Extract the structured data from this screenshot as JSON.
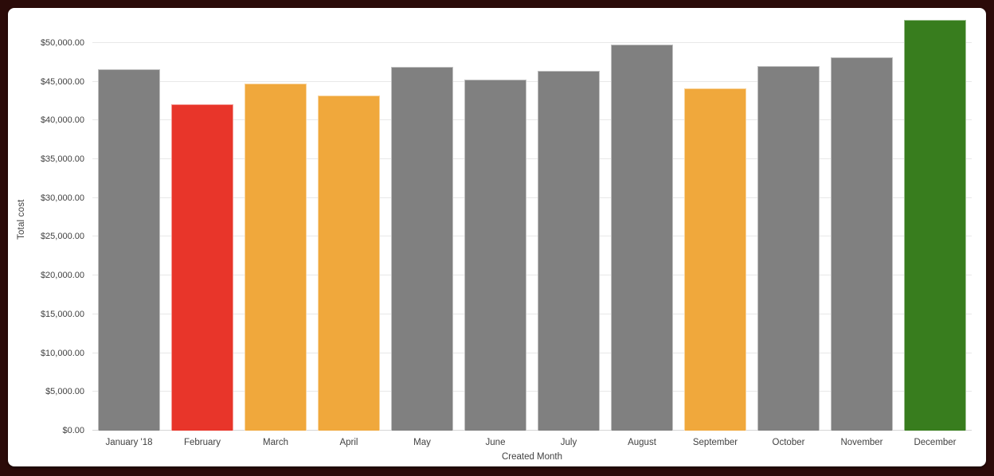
{
  "chart_data": {
    "type": "bar",
    "title": "",
    "xlabel": "Created Month",
    "ylabel": "Total cost",
    "categories": [
      "January '18",
      "February",
      "March",
      "April",
      "May",
      "June",
      "July",
      "August",
      "September",
      "October",
      "November",
      "December"
    ],
    "values": [
      46550,
      42100,
      44750,
      43200,
      46870,
      45300,
      46430,
      49800,
      44100,
      47050,
      48130,
      53000
    ],
    "bar_colors": [
      "#808080",
      "#E8352A",
      "#F0A83C",
      "#F0A83C",
      "#808080",
      "#808080",
      "#808080",
      "#808080",
      "#F0A83C",
      "#808080",
      "#808080",
      "#387D1E"
    ],
    "yticks": [
      0,
      5000,
      10000,
      15000,
      20000,
      25000,
      30000,
      35000,
      40000,
      45000,
      50000
    ],
    "ytick_labels": [
      "$0.00",
      "$5,000.00",
      "$10,000.00",
      "$15,000.00",
      "$20,000.00",
      "$25,000.00",
      "$30,000.00",
      "$35,000.00",
      "$40,000.00",
      "$45,000.00",
      "$50,000.00"
    ],
    "ylim": [
      0,
      54500
    ],
    "grid": "horizontal",
    "legend": "none"
  },
  "colors": {
    "bar_default": "#808080",
    "bar_alert_red": "#E8352A",
    "bar_warning_orange": "#F0A83C",
    "bar_good_green": "#387D1E",
    "frame": "#2B0B09",
    "panel_background": "#ffffff",
    "axis_text": "#414141",
    "gridline": "#e8e8e8"
  }
}
